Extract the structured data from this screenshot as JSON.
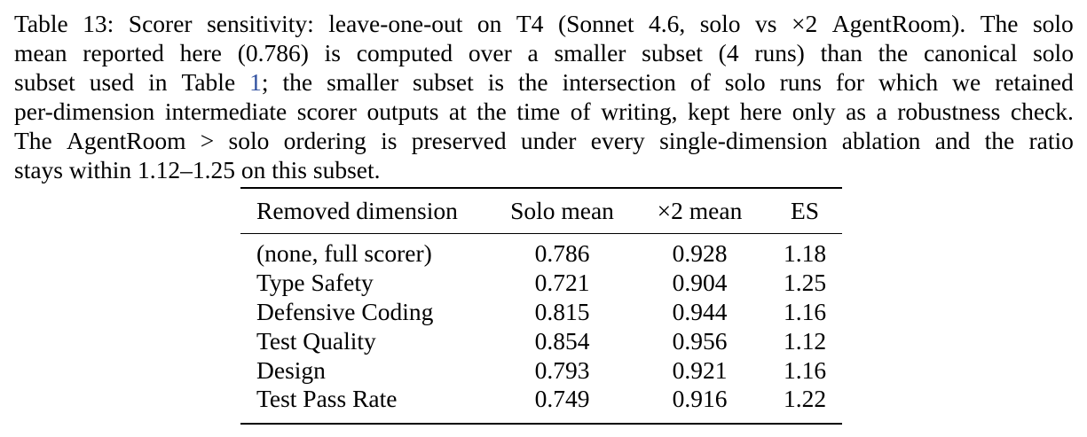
{
  "caption": {
    "lines": [
      "Table 13: Scorer sensitivity: leave-one-out on T4 (Sonnet 4.6, solo vs ×2 AgentRoom). The solo",
      "mean reported here (0.786) is computed over a smaller subset (4 runs) than the canonical solo",
      "subset used in Table 1; the smaller subset is the intersection of solo runs for which we retained",
      "per-dimension intermediate scorer outputs at the time of writing, kept here only as a robustness check.",
      "The AgentRoom > solo ordering is preserved under every single-dimension ablation and the ratio",
      "stays within 1.12–1.25 on this subset."
    ],
    "table_ref": "1",
    "table_ref_color": "#2f4f9f"
  },
  "table": {
    "headers": [
      "Removed dimension",
      "Solo mean",
      "×2 mean",
      "ES"
    ],
    "rows": [
      [
        "(none, full scorer)",
        "0.786",
        "0.928",
        "1.18"
      ],
      [
        "Type Safety",
        "0.721",
        "0.904",
        "1.25"
      ],
      [
        "Defensive Coding",
        "0.815",
        "0.944",
        "1.16"
      ],
      [
        "Test Quality",
        "0.854",
        "0.956",
        "1.12"
      ],
      [
        "Design",
        "0.793",
        "0.921",
        "1.16"
      ],
      [
        "Test Pass Rate",
        "0.749",
        "0.916",
        "1.22"
      ]
    ]
  }
}
